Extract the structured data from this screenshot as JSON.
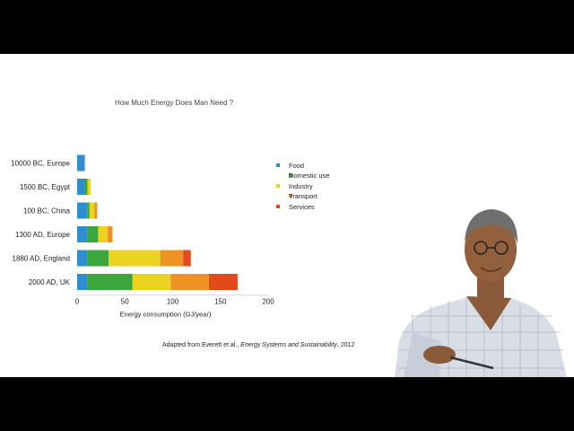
{
  "slide": {
    "title": "How Much Energy Does Man Need ?",
    "caption": {
      "prefix": "Adapted from Everett et al., ",
      "source": "Energy Systems and Sustainability",
      "suffix": ", 2012"
    }
  },
  "chart_data": {
    "type": "bar",
    "orientation": "horizontal",
    "stacked": true,
    "title": "How Much Energy Does Man Need ?",
    "xlabel": "Energy consumption (GJ/year)",
    "ylabel": "",
    "xlim": [
      0,
      200
    ],
    "xticks": [
      "0",
      "50",
      "100",
      "150",
      "200"
    ],
    "grid": false,
    "legend_position": "right",
    "categories": [
      "10000 BC, Europe",
      "1500 BC, Egypt",
      "100 BC, China",
      "1300 AD, Europe",
      "1880 AD, England",
      "2000 AD, UK"
    ],
    "series": [
      {
        "name": "Food",
        "color": "#2e8fd0",
        "values": [
          8,
          8,
          11,
          11,
          11,
          11
        ]
      },
      {
        "name": "Domestic use",
        "color": "#3ca63c",
        "values": [
          0,
          3,
          2,
          11,
          22,
          47
        ]
      },
      {
        "name": "Industry",
        "color": "#ecd320",
        "values": [
          0,
          3,
          5,
          10,
          54,
          40
        ]
      },
      {
        "name": "Transport",
        "color": "#ee9323",
        "values": [
          0,
          0,
          3,
          5,
          24,
          40
        ]
      },
      {
        "name": "Services",
        "color": "#e24a1c",
        "values": [
          0,
          0,
          0,
          0,
          8,
          30
        ]
      }
    ]
  }
}
